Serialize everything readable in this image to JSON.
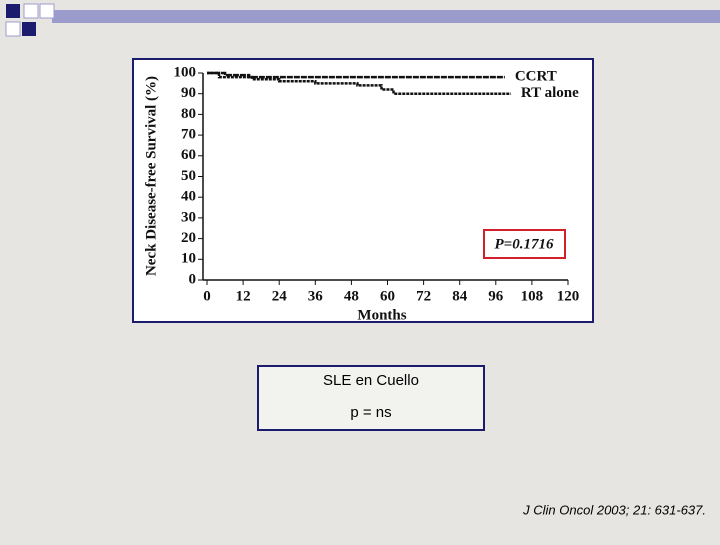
{
  "chart_data": {
    "type": "line",
    "x_label": "Months",
    "y_label": "Neck Disease-free Survival (%)",
    "annotation": "P=0.1716",
    "xlim": [
      0,
      120
    ],
    "ylim": [
      0,
      100
    ],
    "xticks": [
      0,
      12,
      24,
      36,
      48,
      60,
      72,
      84,
      96,
      108,
      120
    ],
    "yticks": [
      0,
      10,
      20,
      30,
      40,
      50,
      60,
      70,
      80,
      90,
      100
    ],
    "series": [
      {
        "name": "CCRT",
        "color": "#111111",
        "x": [
          0,
          6,
          6,
          14,
          14,
          22,
          22,
          99
        ],
        "values": [
          100,
          100,
          99,
          99,
          98,
          98,
          98,
          98
        ]
      },
      {
        "name": "RT alone",
        "color": "#111111",
        "x": [
          0,
          4,
          4,
          15,
          15,
          24,
          24,
          36,
          36,
          50,
          50,
          58,
          58,
          62,
          62,
          101
        ],
        "values": [
          100,
          100,
          98,
          98,
          97,
          97,
          96,
          96,
          95,
          95,
          94,
          94,
          92,
          92,
          90,
          90
        ]
      }
    ]
  },
  "caption": {
    "lines": [
      "SLE en Cuello",
      "p = ns"
    ]
  },
  "citation": "J Clin Oncol  2003; 21: 631-637."
}
